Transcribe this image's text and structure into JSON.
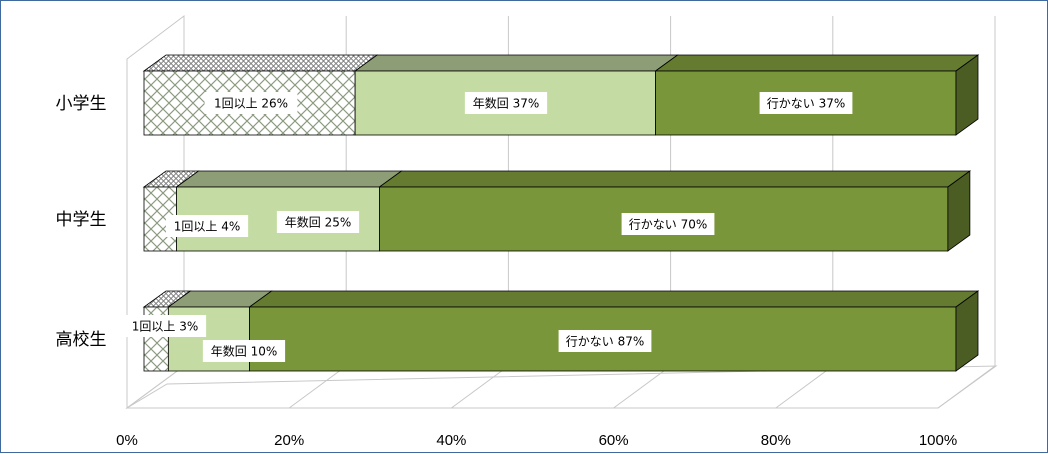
{
  "chart_data": {
    "type": "bar",
    "orientation": "horizontal",
    "stacked": true,
    "percent_stacked": true,
    "three_d": true,
    "categories": [
      "小学生",
      "中学生",
      "高校生"
    ],
    "series": [
      {
        "values": [
          26,
          4,
          3
        ],
        "labels": [
          "1回以上 26%",
          "1回以上 4%",
          "1回以上 3%"
        ],
        "color": "#ffffff",
        "pattern": "crosshatch"
      },
      {
        "values": [
          37,
          25,
          10
        ],
        "labels": [
          "年数回 37%",
          "年数回 25%",
          "年数回 10%"
        ],
        "color": "#c4dca4"
      },
      {
        "values": [
          37,
          70,
          87
        ],
        "labels": [
          "行かない 37%",
          "行かない 70%",
          "行かない 87%"
        ],
        "color": "#7a963a"
      }
    ],
    "x_ticks": [
      "0%",
      "20%",
      "40%",
      "60%",
      "80%",
      "100%"
    ],
    "xlim": [
      0,
      100
    ],
    "grid": true,
    "legend": "none"
  }
}
